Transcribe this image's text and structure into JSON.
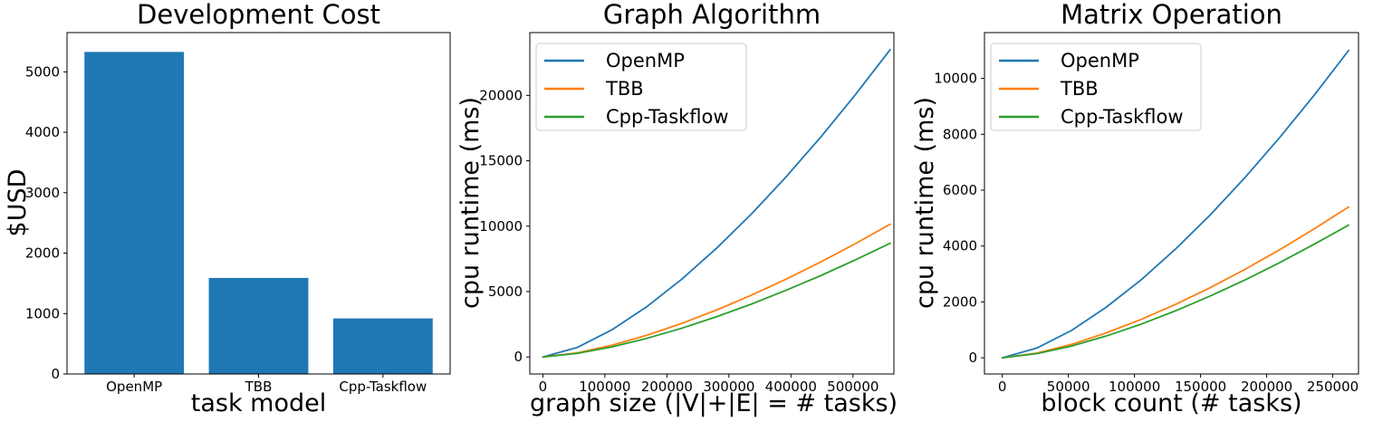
{
  "figure": {
    "background": "#ffffff",
    "text_color": "#000000",
    "spine_color": "#000000"
  },
  "chart_data": [
    {
      "type": "bar",
      "title": "Development Cost",
      "xlabel": "task model",
      "ylabel": "$USD",
      "categories": [
        "OpenMP",
        "TBB",
        "Cpp-Taskflow"
      ],
      "values": [
        5330,
        1590,
        920
      ],
      "bar_color": "#1f77b4",
      "bar_width": 0.8,
      "yticks": [
        0,
        1000,
        2000,
        3000,
        4000,
        5000
      ],
      "xlim": [
        -0.54,
        2.54
      ],
      "ylim": [
        0,
        5650
      ],
      "grid": false
    },
    {
      "type": "line",
      "title": "Graph Algorithm",
      "xlabel": "graph size (|V|+|E| = # tasks)",
      "ylabel": "cpu runtime (ms)",
      "x": [
        0,
        56000,
        112000,
        168000,
        224000,
        280000,
        336000,
        392000,
        448000,
        504000,
        560000
      ],
      "series": [
        {
          "name": "OpenMP",
          "color": "#1f77b4",
          "values": [
            0,
            740,
            2100,
            3860,
            5950,
            8310,
            10920,
            13760,
            16810,
            20060,
            23500
          ]
        },
        {
          "name": "TBB",
          "color": "#ff7f0e",
          "values": [
            0,
            320,
            910,
            1670,
            2570,
            3590,
            4720,
            5950,
            7260,
            8670,
            10150
          ]
        },
        {
          "name": "Cpp-Taskflow",
          "color": "#2ca02c",
          "values": [
            0,
            280,
            780,
            1430,
            2200,
            3080,
            4040,
            5100,
            6220,
            7430,
            8700
          ]
        }
      ],
      "xticks": [
        0,
        100000,
        200000,
        300000,
        400000,
        500000
      ],
      "yticks": [
        0,
        5000,
        10000,
        15000,
        20000
      ],
      "xlim": [
        -21000,
        566000
      ],
      "ylim": [
        -1300,
        24800
      ],
      "legend": {
        "position": "upper-left",
        "entries": [
          "OpenMP",
          "TBB",
          "Cpp-Taskflow"
        ]
      },
      "grid": false
    },
    {
      "type": "line",
      "title": "Matrix Operation",
      "xlabel": "block count (# tasks)",
      "ylabel": "cpu runtime (ms)",
      "x": [
        0,
        26200,
        52400,
        78600,
        104800,
        131000,
        157200,
        183400,
        209600,
        235800,
        262000
      ],
      "series": [
        {
          "name": "OpenMP",
          "color": "#1f77b4",
          "values": [
            0,
            350,
            980,
            1810,
            2780,
            3890,
            5110,
            6440,
            7870,
            9390,
            11000
          ]
        },
        {
          "name": "TBB",
          "color": "#ff7f0e",
          "values": [
            0,
            170,
            480,
            890,
            1370,
            1910,
            2510,
            3160,
            3860,
            4610,
            5400
          ]
        },
        {
          "name": "Cpp-Taskflow",
          "color": "#2ca02c",
          "values": [
            0,
            150,
            420,
            780,
            1200,
            1680,
            2210,
            2780,
            3400,
            4060,
            4750
          ]
        }
      ],
      "xticks": [
        0,
        50000,
        100000,
        150000,
        200000,
        250000
      ],
      "yticks": [
        0,
        2000,
        4000,
        6000,
        8000,
        10000
      ],
      "xlim": [
        -13500,
        269500
      ],
      "ylim": [
        -580,
        11640
      ],
      "legend": {
        "position": "upper-left",
        "entries": [
          "OpenMP",
          "TBB",
          "Cpp-Taskflow"
        ]
      },
      "grid": false
    }
  ]
}
